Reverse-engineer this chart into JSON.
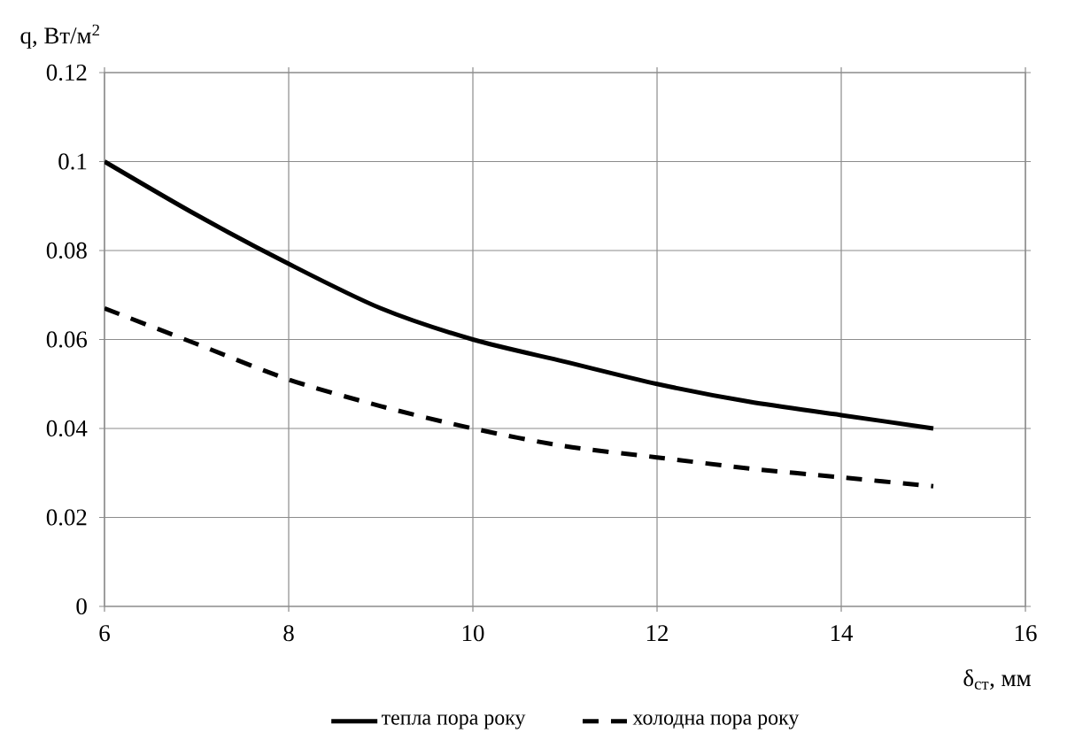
{
  "chart_data": {
    "type": "line",
    "xlabel": "δ$_{ст}$, мм",
    "ylabel": "q, Вт/м$^{2}$",
    "x": [
      6,
      7,
      8,
      9,
      10,
      11,
      12,
      13,
      14,
      15
    ],
    "series": [
      {
        "name": "тепла пора року",
        "color": "#000000",
        "line_style": "solid",
        "values": [
          0.1,
          0.088,
          0.077,
          0.067,
          0.06,
          0.055,
          0.05,
          0.046,
          0.043,
          0.04
        ]
      },
      {
        "name": "холодна пора року",
        "color": "#000000",
        "line_style": "dashed",
        "values": [
          0.067,
          0.059,
          0.051,
          0.045,
          0.04,
          0.036,
          0.0335,
          0.031,
          0.029,
          0.027
        ]
      }
    ],
    "xlim": [
      6,
      16
    ],
    "xticks": [
      6,
      8,
      10,
      12,
      14,
      16
    ],
    "ylim": [
      0,
      0.12
    ],
    "yticks": [
      0,
      0.02,
      0.04,
      0.06,
      0.08,
      0.1,
      0.12
    ],
    "grid": true,
    "legend": "bottom",
    "marker": "none"
  }
}
